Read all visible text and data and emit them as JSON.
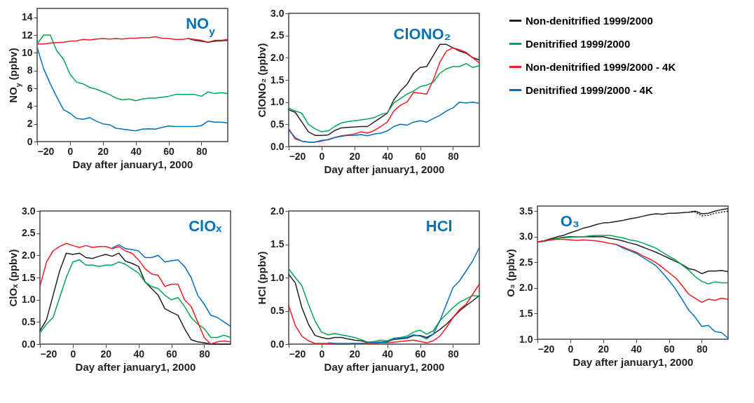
{
  "chart_data": [
    {
      "type": "line",
      "title": "NO$_{y}$",
      "xlabel": "Day after january1, 2000",
      "ylabel": "NO$_{y}$ (ppbv)",
      "x": [
        -20,
        -16,
        -12,
        -8,
        -4,
        0,
        4,
        8,
        12,
        16,
        20,
        24,
        28,
        32,
        36,
        40,
        44,
        48,
        52,
        56,
        60,
        64,
        68,
        72,
        76,
        80,
        84,
        88,
        92,
        96
      ],
      "xlim": [
        -20,
        96
      ],
      "xticks": [
        -20,
        0,
        20,
        40,
        60,
        80
      ],
      "ylim": [
        0,
        15
      ],
      "yticks": [
        0,
        2,
        4,
        6,
        8,
        10,
        12,
        14
      ],
      "series": [
        {
          "color": "#231f20",
          "values": [
            null,
            null,
            null,
            null,
            null,
            null,
            null,
            null,
            null,
            null,
            null,
            null,
            null,
            null,
            null,
            null,
            null,
            null,
            null,
            null,
            null,
            null,
            null,
            11.6,
            11.4,
            11.3,
            11.2,
            11.3,
            11.35,
            11.4
          ]
        },
        {
          "color": "#00a651",
          "values": [
            11.0,
            12.0,
            12.0,
            10.2,
            9.3,
            7.6,
            6.7,
            6.5,
            6.1,
            5.9,
            5.6,
            5.3,
            4.9,
            4.7,
            4.8,
            4.6,
            4.8,
            4.9,
            4.9,
            5.0,
            5.1,
            5.3,
            5.3,
            5.3,
            5.3,
            5.1,
            5.6,
            5.4,
            5.5,
            5.4
          ]
        },
        {
          "color": "#ed1c24",
          "values": [
            11.0,
            11.0,
            11.1,
            11.15,
            11.2,
            11.3,
            11.35,
            11.5,
            11.45,
            11.55,
            11.6,
            11.55,
            11.6,
            11.55,
            11.65,
            11.65,
            11.7,
            11.7,
            11.8,
            11.65,
            11.6,
            11.5,
            11.5,
            11.6,
            11.5,
            11.4,
            11.2,
            11.4,
            11.4,
            11.5
          ]
        },
        {
          "color": "#0072bc",
          "values": [
            10.6,
            8.2,
            6.5,
            5.0,
            3.6,
            3.2,
            2.6,
            2.5,
            2.7,
            2.3,
            2.0,
            1.9,
            1.5,
            1.4,
            1.3,
            1.2,
            1.4,
            1.45,
            1.4,
            1.6,
            1.75,
            1.7,
            1.7,
            1.7,
            1.7,
            1.8,
            2.3,
            2.2,
            2.2,
            2.1
          ]
        }
      ]
    },
    {
      "type": "line",
      "title": "ClONO₂",
      "xlabel": "Day after january1, 2000",
      "ylabel": "ClONO₂ (ppbv)",
      "legend": "right",
      "x": [
        -20,
        -16,
        -12,
        -8,
        -4,
        0,
        4,
        8,
        12,
        16,
        20,
        24,
        28,
        32,
        36,
        40,
        44,
        48,
        52,
        56,
        60,
        64,
        68,
        72,
        76,
        80,
        84,
        88,
        92,
        96
      ],
      "xlim": [
        -20,
        96
      ],
      "xticks": [
        -20,
        0,
        20,
        40,
        60,
        80
      ],
      "ylim": [
        0,
        3
      ],
      "yticks": [
        {
          "value": 0,
          "label": "0.0"
        },
        0.5,
        {
          "value": 1,
          "label": "1.0"
        },
        1.5,
        {
          "value": 2,
          "label": "2.0"
        },
        2.5,
        {
          "value": 3,
          "label": "3.0"
        }
      ],
      "series": [
        {
          "name": "Non-denitrified 1999/2000",
          "color": "#231f20",
          "values": [
            0.83,
            0.77,
            0.55,
            0.33,
            0.25,
            0.25,
            0.26,
            0.36,
            0.42,
            0.43,
            0.44,
            0.45,
            0.45,
            0.55,
            0.65,
            0.75,
            1.05,
            1.25,
            1.4,
            1.65,
            1.78,
            1.8,
            2.05,
            2.3,
            2.3,
            2.22,
            2.15,
            2.1,
            2.0,
            1.95
          ]
        },
        {
          "name": "Denitrified 1999/2000",
          "color": "#00a651",
          "values": [
            0.87,
            0.8,
            0.75,
            0.5,
            0.4,
            0.33,
            0.35,
            0.45,
            0.53,
            0.56,
            0.58,
            0.6,
            0.62,
            0.65,
            0.72,
            0.76,
            0.98,
            1.08,
            1.18,
            1.25,
            1.35,
            1.38,
            1.45,
            1.65,
            1.75,
            1.8,
            1.8,
            1.87,
            1.78,
            1.82
          ]
        },
        {
          "name": "Non-denitrified 1999/2000 - 4K",
          "color": "#ed1c24",
          "values": [
            0.4,
            0.17,
            0.12,
            0.1,
            0.1,
            0.12,
            0.16,
            0.2,
            0.24,
            0.26,
            0.28,
            0.33,
            0.3,
            0.36,
            0.45,
            0.55,
            0.8,
            0.93,
            1.0,
            1.22,
            1.2,
            1.18,
            1.5,
            1.9,
            2.15,
            2.22,
            2.18,
            2.12,
            2.0,
            1.88
          ]
        },
        {
          "name": "Denitrified 1999/2000 - 4K",
          "color": "#0072bc",
          "values": [
            0.37,
            0.2,
            0.12,
            0.1,
            0.1,
            0.14,
            0.15,
            0.2,
            0.23,
            0.25,
            0.25,
            0.27,
            0.24,
            0.28,
            0.3,
            0.35,
            0.45,
            0.5,
            0.48,
            0.55,
            0.58,
            0.55,
            0.63,
            0.7,
            0.8,
            0.87,
            1.0,
            0.98,
            1.0,
            0.97
          ]
        }
      ]
    },
    {
      "type": "line",
      "title": "ClOₓ",
      "xlabel": "Day after january1, 2000",
      "ylabel": "ClOₓ (ppbv)",
      "x": [
        -20,
        -16,
        -12,
        -8,
        -4,
        0,
        4,
        8,
        12,
        16,
        20,
        24,
        28,
        32,
        36,
        40,
        44,
        48,
        52,
        56,
        60,
        64,
        68,
        72,
        76,
        80,
        84,
        88,
        92,
        96
      ],
      "xlim": [
        -20,
        96
      ],
      "xticks": [
        -20,
        0,
        20,
        40,
        60,
        80
      ],
      "ylim": [
        0,
        3
      ],
      "yticks": [
        {
          "value": 0,
          "label": "0.0"
        },
        0.5,
        {
          "value": 1,
          "label": "1.0"
        },
        1.5,
        {
          "value": 2,
          "label": "2.0"
        },
        2.5,
        {
          "value": 3,
          "label": "3.0"
        }
      ],
      "series": [
        {
          "color": "#231f20",
          "values": [
            0.3,
            0.55,
            1.1,
            1.65,
            2.05,
            2.02,
            2.05,
            1.95,
            1.93,
            1.98,
            2.02,
            1.98,
            2.05,
            1.87,
            1.82,
            1.75,
            1.4,
            1.25,
            1.1,
            0.8,
            0.72,
            0.65,
            0.35,
            0.1,
            0.05,
            0.03,
            0.0,
            0.0,
            0.0,
            0.0
          ]
        },
        {
          "color": "#00a651",
          "values": [
            0.25,
            0.45,
            0.6,
            1.05,
            1.5,
            1.85,
            1.9,
            1.78,
            1.78,
            1.75,
            1.78,
            1.78,
            1.85,
            1.8,
            1.7,
            1.6,
            1.4,
            1.3,
            1.25,
            1.1,
            1.0,
            1.05,
            0.85,
            0.6,
            0.45,
            0.35,
            0.15,
            0.15,
            0.2,
            0.15
          ]
        },
        {
          "color": "#ed1c24",
          "values": [
            1.3,
            1.85,
            2.1,
            2.2,
            2.27,
            2.22,
            2.18,
            2.22,
            2.18,
            2.2,
            2.2,
            2.15,
            2.2,
            2.1,
            2.05,
            1.9,
            1.7,
            1.58,
            1.55,
            1.3,
            1.35,
            1.35,
            1.0,
            0.85,
            0.5,
            0.15,
            0.0,
            0.05,
            0.07,
            0.05
          ]
        },
        {
          "color": "#0072bc",
          "values": [
            null,
            null,
            null,
            null,
            null,
            null,
            null,
            null,
            null,
            null,
            null,
            2.17,
            2.24,
            2.15,
            2.13,
            2.1,
            1.95,
            1.95,
            2.0,
            1.85,
            1.88,
            1.9,
            1.75,
            1.5,
            1.1,
            0.9,
            0.65,
            0.6,
            0.5,
            0.4
          ]
        }
      ]
    },
    {
      "type": "line",
      "title": "HCl",
      "xlabel": "Day after january1, 2000",
      "ylabel": "HCl (ppbv)",
      "x": [
        -20,
        -16,
        -12,
        -8,
        -4,
        0,
        4,
        8,
        12,
        16,
        20,
        24,
        28,
        32,
        36,
        40,
        44,
        48,
        52,
        56,
        60,
        64,
        68,
        72,
        76,
        80,
        84,
        88,
        92,
        96
      ],
      "xlim": [
        -20,
        96
      ],
      "xticks": [
        -20,
        0,
        20,
        40,
        60,
        80
      ],
      "ylim": [
        0,
        2
      ],
      "yticks": [
        {
          "value": 0,
          "label": "0.0"
        },
        0.5,
        {
          "value": 1,
          "label": "1.0"
        },
        1.5,
        {
          "value": 2,
          "label": "2.0"
        }
      ],
      "series": [
        {
          "color": "#231f20",
          "values": [
            1.05,
            0.92,
            0.55,
            0.3,
            0.13,
            0.1,
            0.08,
            0.1,
            0.1,
            0.08,
            0.06,
            0.05,
            0.03,
            0.02,
            0.03,
            0.04,
            0.07,
            0.08,
            0.09,
            0.13,
            0.13,
            0.1,
            0.15,
            0.22,
            0.3,
            0.4,
            0.5,
            0.58,
            0.65,
            0.73
          ]
        },
        {
          "color": "#00a651",
          "values": [
            1.13,
            1.0,
            0.88,
            0.6,
            0.35,
            0.18,
            0.14,
            0.16,
            0.14,
            0.12,
            0.1,
            0.07,
            0.03,
            0.04,
            0.06,
            0.05,
            0.09,
            0.1,
            0.12,
            0.18,
            0.21,
            0.15,
            0.2,
            0.35,
            0.45,
            0.55,
            0.63,
            0.68,
            0.73,
            0.72
          ]
        },
        {
          "color": "#ed1c24",
          "values": [
            0.58,
            0.28,
            0.12,
            0.05,
            0.01,
            0.01,
            0.01,
            0.0,
            0.0,
            0.0,
            0.01,
            0.01,
            0.01,
            0.01,
            0.02,
            0.02,
            0.03,
            0.04,
            0.05,
            0.06,
            0.04,
            0.02,
            0.05,
            0.12,
            0.25,
            0.4,
            0.52,
            0.6,
            0.75,
            0.9
          ]
        },
        {
          "color": "#0072bc",
          "values": [
            null,
            null,
            null,
            null,
            null,
            null,
            0.02,
            0.01,
            0.01,
            0.01,
            0.01,
            0.01,
            0.02,
            0.03,
            0.03,
            0.03,
            0.08,
            0.09,
            0.1,
            0.14,
            0.12,
            0.08,
            0.15,
            0.35,
            0.6,
            0.85,
            0.95,
            1.1,
            1.25,
            1.45
          ]
        }
      ]
    },
    {
      "type": "line",
      "title": "O₃",
      "xlabel": "Day after january1, 2000",
      "ylabel": "O₃ (ppbv)",
      "x": [
        -20,
        -16,
        -12,
        -8,
        -4,
        0,
        4,
        8,
        12,
        16,
        20,
        24,
        28,
        32,
        36,
        40,
        44,
        48,
        52,
        56,
        60,
        64,
        68,
        72,
        76,
        80,
        84,
        88,
        92,
        96
      ],
      "xlim": [
        -20,
        96
      ],
      "xticks": [
        -20,
        0,
        20,
        40,
        60,
        80
      ],
      "ylim": [
        1,
        3.6
      ],
      "yticks": [
        {
          "value": 1,
          "label": "1.0"
        },
        1.5,
        {
          "value": 2,
          "label": "2.0"
        },
        2.5,
        {
          "value": 3,
          "label": "3.0"
        },
        3.5
      ],
      "series": [
        {
          "color": "#231f20",
          "values": [
            2.9,
            2.92,
            2.96,
            3.0,
            3.03,
            3.08,
            3.12,
            3.17,
            3.2,
            3.24,
            3.27,
            3.28,
            3.3,
            3.32,
            3.35,
            3.37,
            3.4,
            3.43,
            3.45,
            3.44,
            3.46,
            3.46,
            3.47,
            3.48,
            3.5,
            3.45,
            3.46,
            3.5,
            3.53,
            3.55
          ]
        },
        {
          "color": "#231f20",
          "line_style": "dotted",
          "values": [
            null,
            null,
            null,
            null,
            null,
            null,
            null,
            null,
            null,
            null,
            null,
            null,
            null,
            null,
            null,
            null,
            null,
            null,
            null,
            null,
            null,
            null,
            null,
            3.48,
            3.48,
            3.41,
            3.42,
            3.46,
            3.48,
            3.5
          ]
        },
        {
          "color": "#231f20",
          "values": [
            2.9,
            2.92,
            2.95,
            2.97,
            2.99,
            3.0,
            3.0,
            3.0,
            3.0,
            3.0,
            3.0,
            2.97,
            2.95,
            2.92,
            2.88,
            2.85,
            2.8,
            2.75,
            2.7,
            2.64,
            2.58,
            2.52,
            2.46,
            2.38,
            2.35,
            2.28,
            2.33,
            2.33,
            2.34,
            2.32
          ]
        },
        {
          "color": "#00a651",
          "values": [
            2.9,
            2.91,
            2.94,
            2.97,
            2.98,
            2.99,
            3.0,
            3.0,
            3.02,
            3.03,
            3.03,
            3.03,
            3.0,
            2.98,
            2.94,
            2.92,
            2.88,
            2.83,
            2.78,
            2.7,
            2.62,
            2.55,
            2.45,
            2.35,
            2.22,
            2.13,
            2.08,
            2.12,
            2.1,
            2.1
          ]
        },
        {
          "color": "#ed1c24",
          "values": [
            2.9,
            2.92,
            2.94,
            2.95,
            2.95,
            2.94,
            2.93,
            2.94,
            2.93,
            2.92,
            2.9,
            2.87,
            2.85,
            2.8,
            2.75,
            2.7,
            2.63,
            2.57,
            2.5,
            2.4,
            2.3,
            2.2,
            2.05,
            1.88,
            1.8,
            1.72,
            1.78,
            1.76,
            1.8,
            1.78
          ]
        },
        {
          "color": "#0072bc",
          "values": [
            null,
            null,
            null,
            null,
            null,
            null,
            null,
            null,
            null,
            null,
            null,
            null,
            2.85,
            2.78,
            2.73,
            2.68,
            2.6,
            2.52,
            2.44,
            2.3,
            2.15,
            1.98,
            1.78,
            1.57,
            1.43,
            1.25,
            1.27,
            1.15,
            1.13,
            1.02
          ]
        }
      ]
    }
  ]
}
